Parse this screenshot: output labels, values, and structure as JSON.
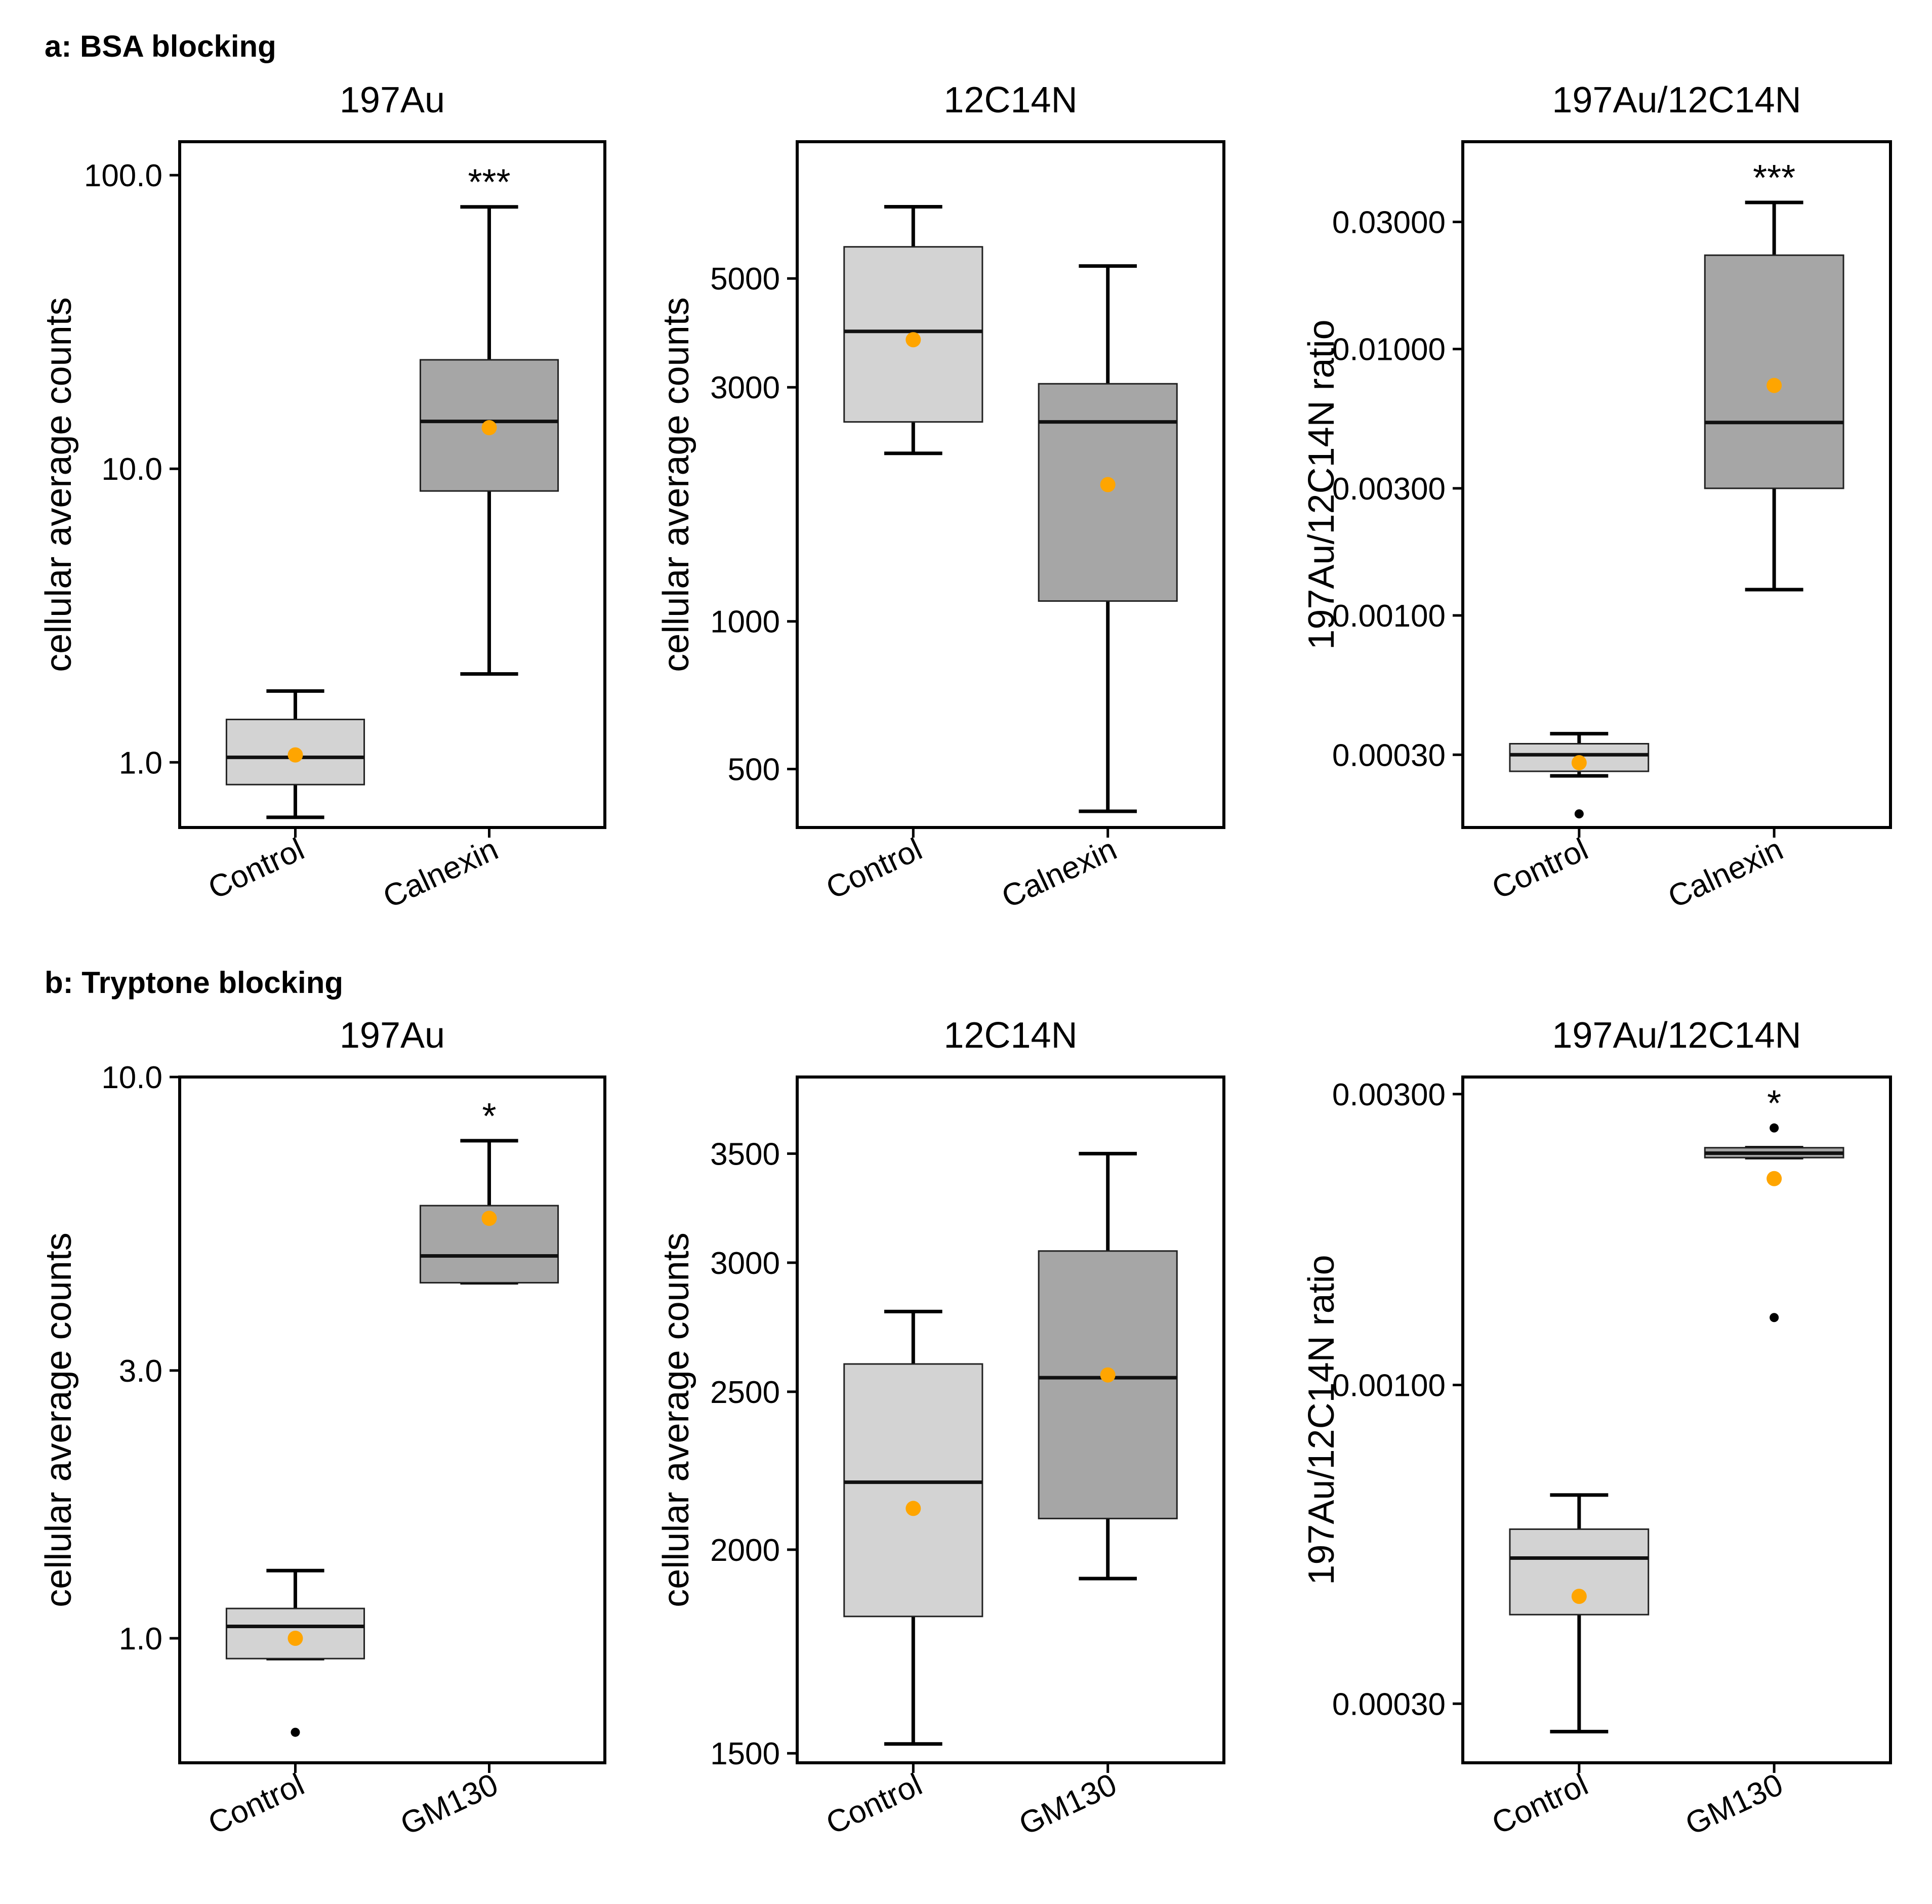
{
  "colors": {
    "control_box": "#d3d3d3",
    "treatment_box": "#a6a6a6",
    "mean_point": "#ffa500",
    "outlier": "#000000",
    "axis": "#000000"
  },
  "sections": [
    {
      "label": "a: BSA blocking"
    },
    {
      "label": "b: Tryptone blocking"
    }
  ],
  "chart_data": [
    {
      "type": "box",
      "section": "a: BSA blocking",
      "title": "197Au",
      "ylabel": "cellular average counts",
      "xlabel": "",
      "yscale": "log",
      "ylim": [
        0.6,
        130
      ],
      "yticks": [
        1.0,
        10.0,
        100.0
      ],
      "ytick_labels": [
        "1.0",
        "10.0",
        "100.0"
      ],
      "categories": [
        "Control",
        "Calnexin"
      ],
      "boxes": [
        {
          "group": "Control",
          "whisker_low": 0.65,
          "q1": 0.84,
          "median": 1.04,
          "q3": 1.4,
          "whisker_high": 1.75,
          "mean": 1.06,
          "outliers": []
        },
        {
          "group": "Calnexin",
          "whisker_low": 2.0,
          "q1": 8.4,
          "median": 14.5,
          "q3": 23.5,
          "whisker_high": 78,
          "mean": 13.8,
          "outliers": []
        }
      ],
      "significance": [
        {
          "group": "Calnexin",
          "label": "***"
        }
      ]
    },
    {
      "type": "box",
      "section": "a: BSA blocking",
      "title": "12C14N",
      "ylabel": "cellular average counts",
      "xlabel": "",
      "yscale": "log",
      "ylim": [
        380,
        9500
      ],
      "yticks": [
        500,
        1000,
        3000,
        5000
      ],
      "ytick_labels": [
        "500",
        "1000",
        "3000",
        "5000"
      ],
      "categories": [
        "Control",
        "Calnexin"
      ],
      "boxes": [
        {
          "group": "Control",
          "whisker_low": 2200,
          "q1": 2550,
          "median": 3900,
          "q3": 5800,
          "whisker_high": 7000,
          "mean": 3750,
          "outliers": []
        },
        {
          "group": "Calnexin",
          "whisker_low": 410,
          "q1": 1100,
          "median": 2550,
          "q3": 3050,
          "whisker_high": 5300,
          "mean": 1900,
          "outliers": []
        }
      ],
      "significance": []
    },
    {
      "type": "box",
      "section": "a: BSA blocking",
      "title": "197Au/12C14N",
      "ylabel": "197Au/12C14N ratio",
      "xlabel": "",
      "yscale": "log",
      "ylim": [
        0.00016,
        0.06
      ],
      "yticks": [
        0.0003,
        0.001,
        0.003,
        0.01,
        0.03
      ],
      "ytick_labels": [
        "0.00030",
        "0.00100",
        "0.00300",
        "0.01000",
        "0.03000"
      ],
      "categories": [
        "Control",
        "Calnexin"
      ],
      "boxes": [
        {
          "group": "Control",
          "whisker_low": 0.00025,
          "q1": 0.00026,
          "median": 0.0003,
          "q3": 0.00033,
          "whisker_high": 0.00036,
          "mean": 0.00028,
          "outliers": [
            0.00018
          ]
        },
        {
          "group": "Calnexin",
          "whisker_low": 0.00125,
          "q1": 0.003,
          "median": 0.0053,
          "q3": 0.0225,
          "whisker_high": 0.0355,
          "mean": 0.0073,
          "outliers": []
        }
      ],
      "significance": [
        {
          "group": "Calnexin",
          "label": "***"
        }
      ]
    },
    {
      "type": "box",
      "section": "b: Tryptone blocking",
      "title": "197Au",
      "ylabel": "cellular average counts",
      "xlabel": "",
      "yscale": "log",
      "ylim": [
        0.6,
        10
      ],
      "yticks": [
        1.0,
        3.0,
        10.0
      ],
      "ytick_labels": [
        "1.0",
        "3.0",
        "10.0"
      ],
      "categories": [
        "Control",
        "GM130"
      ],
      "boxes": [
        {
          "group": "Control",
          "whisker_low": 0.92,
          "q1": 0.92,
          "median": 1.05,
          "q3": 1.13,
          "whisker_high": 1.32,
          "mean": 1.0,
          "outliers": [
            0.68
          ]
        },
        {
          "group": "GM130",
          "whisker_low": 4.3,
          "q1": 4.3,
          "median": 4.8,
          "q3": 5.9,
          "whisker_high": 7.7,
          "mean": 5.6,
          "outliers": []
        }
      ],
      "significance": [
        {
          "group": "GM130",
          "label": "*"
        }
      ]
    },
    {
      "type": "box",
      "section": "b: Tryptone blocking",
      "title": "12C14N",
      "ylabel": "cellular average counts",
      "xlabel": "",
      "yscale": "log",
      "ylim": [
        1480,
        3900
      ],
      "yticks": [
        1500,
        2000,
        2500,
        3000,
        3500
      ],
      "ytick_labels": [
        "1500",
        "2000",
        "2500",
        "3000",
        "3500"
      ],
      "categories": [
        "Control",
        "GM130"
      ],
      "boxes": [
        {
          "group": "Control",
          "whisker_low": 1520,
          "q1": 1820,
          "median": 2200,
          "q3": 2600,
          "whisker_high": 2800,
          "mean": 2120,
          "outliers": []
        },
        {
          "group": "GM130",
          "whisker_low": 1920,
          "q1": 2090,
          "median": 2550,
          "q3": 3050,
          "whisker_high": 3500,
          "mean": 2560,
          "outliers": []
        }
      ],
      "significance": []
    },
    {
      "type": "box",
      "section": "b: Tryptone blocking",
      "title": "197Au/12C14N",
      "ylabel": "197Au/12C14N ratio",
      "xlabel": "",
      "yscale": "log",
      "ylim": [
        0.00024,
        0.0032
      ],
      "yticks": [
        0.0003,
        0.001,
        0.003
      ],
      "ytick_labels": [
        "0.00030",
        "0.00100",
        "0.00300"
      ],
      "categories": [
        "Control",
        "GM130"
      ],
      "boxes": [
        {
          "group": "Control",
          "whisker_low": 0.00027,
          "q1": 0.00042,
          "median": 0.00052,
          "q3": 0.00058,
          "whisker_high": 0.00066,
          "mean": 0.00045,
          "outliers": []
        },
        {
          "group": "GM130",
          "whisker_low": 0.00236,
          "q1": 0.00236,
          "median": 0.0024,
          "q3": 0.00245,
          "whisker_high": 0.00245,
          "mean": 0.00218,
          "outliers": [
            0.00264,
            0.00129
          ]
        }
      ],
      "significance": [
        {
          "group": "GM130",
          "label": "*"
        }
      ]
    }
  ]
}
